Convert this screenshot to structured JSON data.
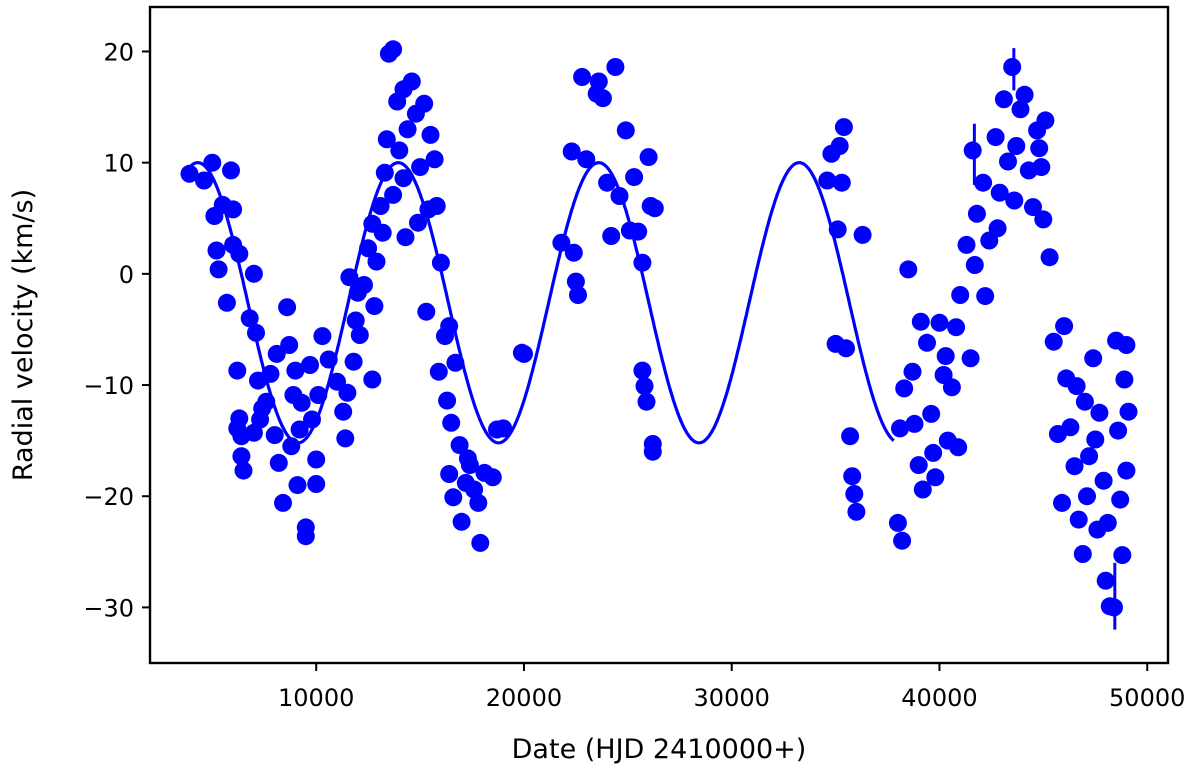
{
  "chart_data": {
    "type": "scatter",
    "xlabel": "Date (HJD 2410000+)",
    "ylabel": "Radial velocity (km/s)",
    "xlim": [
      2000,
      51000
    ],
    "ylim": [
      -35,
      24
    ],
    "xticks": [
      10000,
      20000,
      30000,
      40000,
      50000
    ],
    "yticks": [
      -30,
      -20,
      -10,
      0,
      10,
      20
    ],
    "xtick_labels": [
      "10000",
      "20000",
      "30000",
      "40000",
      "50000"
    ],
    "ytick_labels": [
      "−30",
      "−20",
      "−10",
      "0",
      "10",
      "20"
    ],
    "grid": false,
    "legend": "none",
    "colors": {
      "series": "#0000ff",
      "frame": "#000000"
    },
    "model_curve": {
      "period": 9650,
      "center": -2.6,
      "amplitude": 12.6,
      "x_of_maximum": 23600,
      "x_range": [
        3800,
        37800
      ]
    },
    "series": [
      {
        "points": [
          [
            3900,
            9.0
          ],
          [
            4600,
            8.4
          ],
          [
            5000,
            10.0
          ],
          [
            5100,
            5.2
          ],
          [
            5200,
            2.1
          ],
          [
            5300,
            0.4
          ],
          [
            5500,
            6.2
          ],
          [
            5700,
            -2.6
          ],
          [
            5900,
            9.3
          ],
          [
            6000,
            5.8
          ],
          [
            6000,
            2.6
          ],
          [
            6300,
            1.8
          ],
          [
            6200,
            -8.7
          ],
          [
            6300,
            -13.0
          ],
          [
            6400,
            -14.6
          ],
          [
            6400,
            -16.4
          ],
          [
            6500,
            -17.7
          ],
          [
            6800,
            -4.0
          ],
          [
            7000,
            0.0
          ],
          [
            7100,
            -5.3
          ],
          [
            7200,
            -9.6
          ],
          [
            7300,
            -13.1
          ],
          [
            7600,
            -11.5
          ],
          [
            7800,
            -9.0
          ],
          [
            8000,
            -14.5
          ],
          [
            8200,
            -17.0
          ],
          [
            8400,
            -20.6
          ],
          [
            8600,
            -3.0
          ],
          [
            8700,
            -6.4
          ],
          [
            8900,
            -10.9
          ],
          [
            9100,
            -19.0
          ],
          [
            9200,
            -14.0
          ],
          [
            9500,
            -23.6
          ],
          [
            9500,
            -22.8
          ],
          [
            9700,
            -8.2
          ],
          [
            9800,
            -13.1
          ],
          [
            10000,
            -16.7
          ],
          [
            10000,
            -18.9
          ],
          [
            10300,
            -5.6
          ],
          [
            10600,
            -7.7
          ],
          [
            11000,
            -9.7
          ],
          [
            11300,
            -12.4
          ],
          [
            11400,
            -14.8
          ],
          [
            11500,
            -10.7
          ],
          [
            11600,
            -0.3
          ],
          [
            11900,
            -4.2
          ],
          [
            12100,
            -5.5
          ],
          [
            12300,
            -1.0
          ],
          [
            12500,
            2.3
          ],
          [
            12700,
            4.5
          ],
          [
            12700,
            -9.5
          ],
          [
            12800,
            -2.9
          ],
          [
            12900,
            1.1
          ],
          [
            13100,
            6.1
          ],
          [
            13300,
            9.1
          ],
          [
            13400,
            12.1
          ],
          [
            13500,
            19.8
          ],
          [
            13700,
            20.2
          ],
          [
            13900,
            15.5
          ],
          [
            14000,
            11.1
          ],
          [
            14200,
            8.6
          ],
          [
            14300,
            3.3
          ],
          [
            14400,
            13.0
          ],
          [
            14600,
            17.3
          ],
          [
            14800,
            14.4
          ],
          [
            15000,
            9.6
          ],
          [
            15200,
            15.3
          ],
          [
            15300,
            -3.4
          ],
          [
            15500,
            12.5
          ],
          [
            15700,
            10.3
          ],
          [
            15800,
            6.1
          ],
          [
            16000,
            1.0
          ],
          [
            16200,
            -5.6
          ],
          [
            16300,
            -11.4
          ],
          [
            16400,
            -18.0
          ],
          [
            16500,
            -13.4
          ],
          [
            16600,
            -20.1
          ],
          [
            16700,
            -8.0
          ],
          [
            16900,
            -15.4
          ],
          [
            17000,
            -22.3
          ],
          [
            17200,
            -18.8
          ],
          [
            17400,
            -17.2
          ],
          [
            17600,
            -19.4
          ],
          [
            17800,
            -20.6
          ],
          [
            17900,
            -24.2
          ],
          [
            18100,
            -17.9
          ],
          [
            18500,
            -18.3
          ],
          [
            18700,
            -14.0
          ],
          [
            19000,
            -13.9
          ],
          [
            19900,
            -7.1
          ],
          [
            21800,
            2.8
          ],
          [
            22300,
            11.0
          ],
          [
            22400,
            1.9
          ],
          [
            22500,
            -0.7
          ],
          [
            22600,
            -1.9
          ],
          [
            22800,
            17.7
          ],
          [
            23500,
            16.2
          ],
          [
            23600,
            17.3
          ],
          [
            23800,
            15.8
          ],
          [
            24200,
            3.4
          ],
          [
            24400,
            18.6
          ],
          [
            24600,
            7.0
          ],
          [
            24900,
            12.9
          ],
          [
            25100,
            3.9
          ],
          [
            25300,
            8.7
          ],
          [
            25500,
            3.8
          ],
          [
            25700,
            -8.7
          ],
          [
            25800,
            -10.1
          ],
          [
            25900,
            -11.5
          ],
          [
            26000,
            10.5
          ],
          [
            26100,
            6.1
          ],
          [
            26200,
            -15.3
          ],
          [
            26200,
            -16.0
          ],
          [
            26300,
            5.9
          ],
          [
            34600,
            8.4
          ],
          [
            34800,
            10.8
          ],
          [
            35000,
            -6.3
          ],
          [
            35200,
            11.5
          ],
          [
            35300,
            8.2
          ],
          [
            35400,
            13.2
          ],
          [
            35500,
            -6.7
          ],
          [
            35700,
            -14.6
          ],
          [
            35800,
            -18.2
          ],
          [
            35900,
            -19.8
          ],
          [
            36000,
            -21.4
          ],
          [
            36300,
            3.5
          ],
          [
            38000,
            -22.4
          ],
          [
            38200,
            -24.0
          ],
          [
            38300,
            -10.3
          ],
          [
            38500,
            0.4
          ],
          [
            38800,
            -13.5
          ],
          [
            39000,
            -17.2
          ],
          [
            39200,
            -19.4
          ],
          [
            39400,
            -6.2
          ],
          [
            39600,
            -12.6
          ],
          [
            39800,
            -18.3
          ],
          [
            40000,
            -4.4
          ],
          [
            40200,
            -9.1
          ],
          [
            40400,
            -15.0
          ],
          [
            40600,
            -10.2
          ],
          [
            40800,
            -4.8
          ],
          [
            41000,
            -1.9
          ],
          [
            41300,
            2.6
          ],
          [
            41500,
            -7.6
          ],
          [
            41600,
            11.1
          ],
          [
            41800,
            5.4
          ],
          [
            42100,
            8.2
          ],
          [
            42400,
            3.0
          ],
          [
            42700,
            12.3
          ],
          [
            42900,
            7.3
          ],
          [
            43100,
            15.7
          ],
          [
            43300,
            10.1
          ],
          [
            43500,
            18.6
          ],
          [
            43700,
            11.5
          ],
          [
            43900,
            14.8
          ],
          [
            44100,
            16.1
          ],
          [
            44300,
            9.3
          ],
          [
            44500,
            6.0
          ],
          [
            44700,
            12.9
          ],
          [
            44900,
            9.6
          ],
          [
            45100,
            13.8
          ],
          [
            45300,
            1.5
          ],
          [
            45500,
            -6.1
          ],
          [
            45700,
            -14.4
          ],
          [
            45900,
            -20.6
          ],
          [
            46100,
            -9.4
          ],
          [
            46300,
            -13.8
          ],
          [
            46500,
            -17.3
          ],
          [
            46700,
            -22.1
          ],
          [
            46900,
            -25.2
          ],
          [
            47000,
            -11.5
          ],
          [
            47200,
            -16.4
          ],
          [
            47400,
            -7.6
          ],
          [
            47600,
            -23.0
          ],
          [
            47700,
            -12.5
          ],
          [
            47900,
            -18.6
          ],
          [
            48000,
            -27.6
          ],
          [
            48200,
            -29.9
          ],
          [
            48400,
            -30.0
          ],
          [
            48500,
            -6.0
          ],
          [
            48600,
            -14.1
          ],
          [
            48700,
            -20.3
          ],
          [
            48900,
            -9.5
          ],
          [
            49000,
            -17.7
          ],
          [
            49100,
            -12.4
          ]
        ],
        "extra_points": [
          [
            6200,
            -13.9
          ],
          [
            7000,
            -14.3
          ],
          [
            7400,
            -12.1
          ],
          [
            8100,
            -7.2
          ],
          [
            8800,
            -15.5
          ],
          [
            9000,
            -8.7
          ],
          [
            9300,
            -11.6
          ],
          [
            10100,
            -10.9
          ],
          [
            11800,
            -7.9
          ],
          [
            12000,
            -1.7
          ],
          [
            13200,
            3.7
          ],
          [
            13700,
            7.1
          ],
          [
            14200,
            16.6
          ],
          [
            14900,
            4.6
          ],
          [
            15400,
            5.8
          ],
          [
            15900,
            -8.8
          ],
          [
            16400,
            -4.7
          ],
          [
            17300,
            -16.6
          ],
          [
            20000,
            -7.2
          ],
          [
            23000,
            10.3
          ],
          [
            24000,
            8.2
          ],
          [
            25700,
            1.0
          ],
          [
            35100,
            4.0
          ],
          [
            38100,
            -13.9
          ],
          [
            38700,
            -8.8
          ],
          [
            39100,
            -4.3
          ],
          [
            39700,
            -16.1
          ],
          [
            40300,
            -7.4
          ],
          [
            40900,
            -15.6
          ],
          [
            41700,
            0.8
          ],
          [
            42200,
            -2.0
          ],
          [
            42800,
            4.1
          ],
          [
            43600,
            6.6
          ],
          [
            44800,
            11.3
          ],
          [
            45000,
            4.9
          ],
          [
            46000,
            -4.7
          ],
          [
            46600,
            -10.1
          ],
          [
            47100,
            -20.0
          ],
          [
            47500,
            -14.9
          ],
          [
            48100,
            -22.4
          ],
          [
            48800,
            -25.3
          ],
          [
            49000,
            -6.4
          ]
        ]
      }
    ],
    "errorbar_spikes": [
      [
        41680,
        13.5,
        8.0
      ],
      [
        43580,
        20.3,
        16.5
      ],
      [
        48440,
        -32.0,
        -26.0
      ]
    ]
  }
}
